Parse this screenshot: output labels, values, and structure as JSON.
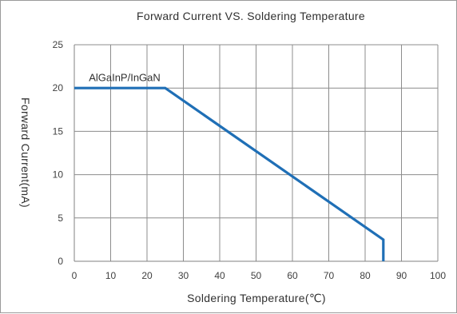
{
  "chart_data": {
    "type": "line",
    "title": "Forward Current VS. Soldering Temperature",
    "xlabel": "Soldering Temperature(℃)",
    "ylabel": "Forward  Current(mA)",
    "xlim": [
      0,
      100
    ],
    "ylim": [
      0,
      25
    ],
    "x_ticks": [
      0,
      10,
      20,
      30,
      40,
      50,
      60,
      70,
      80,
      90,
      100
    ],
    "y_ticks": [
      0,
      5,
      10,
      15,
      20,
      25
    ],
    "grid": true,
    "series": [
      {
        "name": "AlGaInP/InGaN",
        "color": "#1f6fb6",
        "points": [
          [
            0,
            20
          ],
          [
            25,
            20
          ],
          [
            85,
            2.5
          ],
          [
            85,
            0
          ]
        ]
      }
    ],
    "annotations": [
      {
        "text": "AlGaInP/InGaN",
        "x": 4,
        "y": 20.8
      }
    ]
  }
}
